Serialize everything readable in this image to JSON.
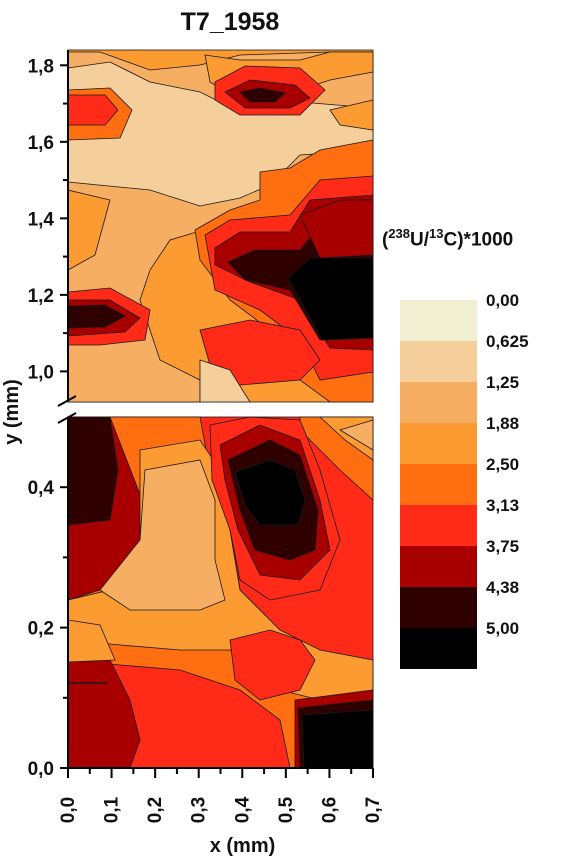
{
  "title": "T7_1958",
  "chart_data": {
    "type": "heatmap",
    "title": "T7_1958",
    "xlabel": "x (mm)",
    "ylabel": "y (mm)",
    "colorbar_title": {
      "open": "(",
      "sup1": "238",
      "mid": "U/",
      "sup2": "13",
      "close": "C)*1000"
    },
    "x_ticks": [
      "0,0",
      "0,1",
      "0,2",
      "0,3",
      "0,4",
      "0,5",
      "0,6",
      "0,7"
    ],
    "y_ticks_upper": [
      "1,0",
      "1,2",
      "1,4",
      "1,6",
      "1,8"
    ],
    "y_ticks_lower": [
      "0,0",
      "0,2",
      "0,4"
    ],
    "xlim": [
      0,
      0.7
    ],
    "ylim_lower": [
      0,
      0.5
    ],
    "ylim_upper": [
      0.92,
      1.84
    ],
    "axis_break": "y",
    "levels": [
      "0,00",
      "0,625",
      "1,25",
      "1,88",
      "2,50",
      "3,13",
      "3,75",
      "4,38",
      "5,00"
    ],
    "level_colors": [
      "#f1efd2",
      "#f4cf9c",
      "#f6ae62",
      "#fb9b32",
      "#ff6e10",
      "#ff2a18",
      "#a80000",
      "#2e0000",
      "#000000"
    ]
  }
}
